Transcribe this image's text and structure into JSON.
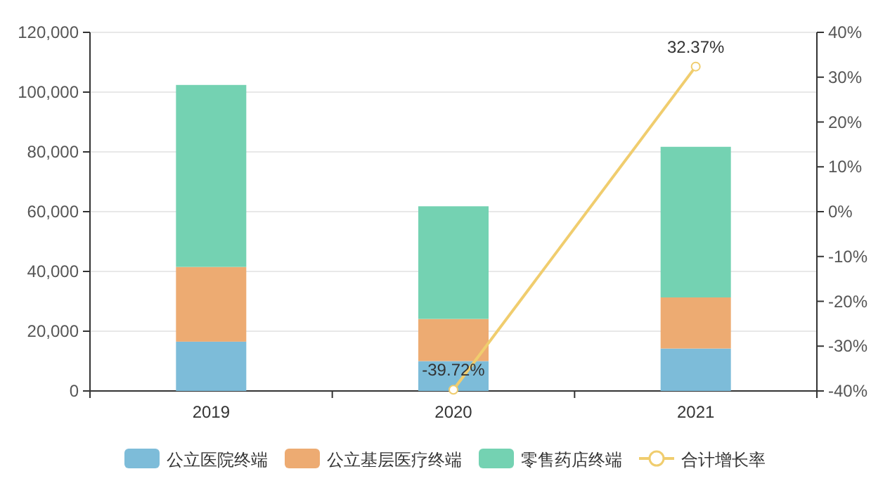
{
  "chart_data": {
    "type": "bar",
    "stacked": true,
    "categories": [
      "2019",
      "2020",
      "2021"
    ],
    "series": [
      {
        "name": "公立医院终端",
        "color": "#7dbcd9",
        "values": [
          16500,
          10000,
          14200
        ]
      },
      {
        "name": "公立基层医疗终端",
        "color": "#edab72",
        "values": [
          25000,
          14100,
          17100
        ]
      },
      {
        "name": "零售药店终端",
        "color": "#74d2b2",
        "values": [
          60900,
          37700,
          50400
        ]
      },
      {
        "name": "合计增长率",
        "type": "line",
        "axis": "y2",
        "color": "#f0cd6e",
        "marker": "circle",
        "values": [
          null,
          -39.72,
          32.37
        ],
        "value_labels": [
          null,
          "-39.72%",
          "32.37%"
        ]
      }
    ],
    "ylim": [
      0,
      120000
    ],
    "yticks": [
      {
        "value": 0,
        "label": "0"
      },
      {
        "value": 20000,
        "label": "20,000"
      },
      {
        "value": 40000,
        "label": "40,000"
      },
      {
        "value": 60000,
        "label": "60,000"
      },
      {
        "value": 80000,
        "label": "80,000"
      },
      {
        "value": 100000,
        "label": "100,000"
      },
      {
        "value": 120000,
        "label": "120,000"
      }
    ],
    "y2lim": [
      -40,
      40
    ],
    "y2ticks": [
      {
        "value": -40,
        "label": "-40%"
      },
      {
        "value": -30,
        "label": "-30%"
      },
      {
        "value": -20,
        "label": "-20%"
      },
      {
        "value": -10,
        "label": "-10%"
      },
      {
        "value": 0,
        "label": "0%"
      },
      {
        "value": 10,
        "label": "10%"
      },
      {
        "value": 20,
        "label": "20%"
      },
      {
        "value": 30,
        "label": "30%"
      },
      {
        "value": 40,
        "label": "40%"
      }
    ],
    "grid": "y",
    "legend": "bottom"
  }
}
